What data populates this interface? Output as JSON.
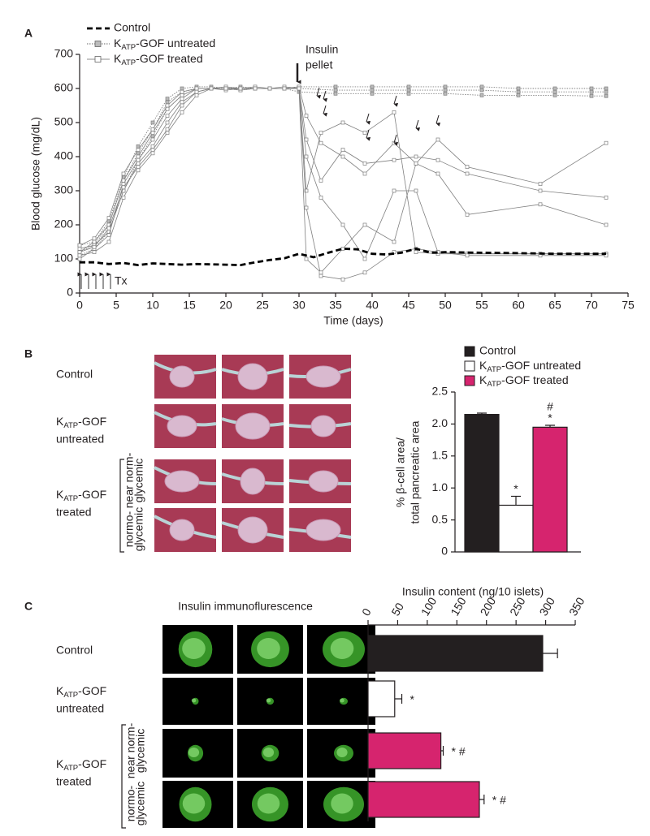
{
  "panel_labels": [
    "A",
    "B",
    "C"
  ],
  "figure_b": {
    "row_labels": [
      [
        "Control"
      ],
      [
        [
          "K",
          {
            "sub": "ATP"
          },
          "-GOF"
        ],
        "untreated"
      ],
      [
        [
          "K",
          {
            "sub": "ATP"
          },
          "-GOF"
        ],
        "treated"
      ]
    ],
    "subgroup_labels": [
      [
        "near norm-",
        "glycemic"
      ],
      [
        "normo-",
        "glycemic"
      ]
    ]
  },
  "figure_c": {
    "title": "Insulin immunoflurescence",
    "row_labels": [
      [
        "Control"
      ],
      [
        [
          "K",
          {
            "sub": "ATP"
          },
          "-GOF"
        ],
        "untreated"
      ],
      [
        [
          "K",
          {
            "sub": "ATP"
          },
          "-GOF"
        ],
        "treated"
      ]
    ],
    "subgroup_labels": [
      [
        "near norm-",
        "glycemic"
      ],
      [
        "normo-",
        "glycemic"
      ]
    ]
  },
  "chart_data": [
    {
      "type": "line",
      "xlabel": "Time (days)",
      "ylabel": "Blood glucose (mg/dL)",
      "xlim": [
        0,
        75
      ],
      "ylim": [
        0,
        700
      ],
      "xticks": [
        0,
        5,
        10,
        15,
        20,
        25,
        30,
        35,
        40,
        45,
        50,
        55,
        60,
        65,
        70,
        75
      ],
      "yticks": [
        0,
        100,
        200,
        300,
        400,
        500,
        600,
        700
      ],
      "annotations": {
        "pellet": [
          "Insulin",
          "pellet"
        ],
        "treatment": "Tx"
      },
      "series": [
        {
          "name": "Control",
          "color": "#000000",
          "style": "dashed",
          "x": [
            0,
            2,
            4,
            6,
            8,
            10,
            12,
            14,
            16,
            18,
            20,
            22,
            24,
            26,
            28,
            30,
            32,
            34,
            36,
            38,
            40,
            42,
            44,
            46,
            48,
            50,
            55,
            60,
            65,
            70,
            72
          ],
          "values": [
            90,
            90,
            85,
            88,
            82,
            87,
            85,
            83,
            85,
            84,
            83,
            82,
            90,
            97,
            102,
            115,
            105,
            118,
            130,
            128,
            115,
            113,
            118,
            130,
            118,
            120,
            118,
            117,
            115,
            115,
            115
          ]
        },
        {
          "name": [
            "K",
            {
              "sub": "ATP"
            },
            "-GOF untreated"
          ],
          "color": "#808080",
          "style": "dotted",
          "marker": "filled",
          "x": [
            0,
            2,
            4,
            6,
            8,
            10,
            12,
            14,
            16,
            18,
            20,
            22,
            24,
            26,
            28,
            30,
            35,
            40,
            45,
            50,
            55,
            60,
            65,
            70,
            72
          ],
          "traces": [
            [
              140,
              150,
              210,
              340,
              430,
              500,
              570,
              600,
              605,
              605,
              600,
              605,
              600,
              600,
              600,
              605,
              605,
              605,
              605,
              605,
              605,
              600,
              600,
              600,
              600
            ],
            [
              120,
              140,
              200,
              330,
              410,
              480,
              560,
              590,
              600,
              600,
              600,
              600,
              600,
              600,
              600,
              600,
              595,
              595,
              595,
              595,
              595,
              590,
              590,
              590,
              590
            ],
            [
              110,
              130,
              180,
              300,
              390,
              460,
              540,
              580,
              600,
              600,
              600,
              595,
              600,
              600,
              600,
              590,
              585,
              585,
              585,
              585,
              580,
              580,
              580,
              578,
              578
            ]
          ]
        },
        {
          "name": [
            "K",
            {
              "sub": "ATP"
            },
            "-GOF treated"
          ],
          "color": "#808080",
          "style": "solid",
          "marker": "open",
          "x": [
            0,
            2,
            4,
            6,
            8,
            10,
            12,
            14,
            16,
            18,
            20,
            22,
            24,
            26,
            28,
            30,
            31,
            33,
            36,
            39,
            43,
            46,
            49,
            53,
            63,
            72
          ],
          "traces": [
            [
              120,
              150,
              200,
              330,
              400,
              470,
              540,
              580,
              600,
              600,
              605,
              600,
              600,
              600,
              605,
              600,
              300,
              470,
              500,
              470,
              530,
              120,
              115,
              115,
              115,
              115
            ],
            [
              130,
              140,
              180,
              300,
              380,
              430,
              500,
              560,
              590,
              600,
              595,
              600,
              605,
              600,
              600,
              600,
              250,
              50,
              40,
              60,
              120,
              130,
              120,
              115,
              115,
              115
            ],
            [
              110,
              120,
              150,
              280,
              360,
              410,
              470,
              530,
              580,
              600,
              600,
              595,
              600,
              600,
              600,
              605,
              520,
              440,
              400,
              350,
              440,
              380,
              450,
              370,
              320,
              440
            ],
            [
              100,
              130,
              170,
              320,
              390,
              450,
              520,
              570,
              600,
              600,
              600,
              600,
              600,
              600,
              600,
              600,
              450,
              330,
              420,
              380,
              390,
              400,
              390,
              350,
              300,
              280
            ],
            [
              140,
              160,
              220,
              350,
              420,
              480,
              550,
              590,
              600,
              600,
              600,
              600,
              600,
              600,
              600,
              600,
              100,
              60,
              130,
              200,
              150,
              380,
              350,
              230,
              260,
              200
            ],
            [
              120,
              135,
              190,
              310,
              370,
              420,
              480,
              550,
              590,
              600,
              600,
              600,
              600,
              600,
              600,
              600,
              400,
              280,
              200,
              100,
              300,
              300,
              120,
              110,
              110,
              110
            ]
          ]
        }
      ]
    },
    {
      "type": "bar",
      "ylabel": [
        "% β-cell area/",
        "total pancreatic area"
      ],
      "categories": [
        "Control",
        [
          "K",
          {
            "sub": "ATP"
          },
          "-GOF untreated"
        ],
        [
          "K",
          {
            "sub": "ATP"
          },
          "-GOF treated"
        ]
      ],
      "colors": [
        "#231f20",
        "#ffffff",
        "#d6246e"
      ],
      "values": [
        2.15,
        0.73,
        1.95
      ],
      "errors": [
        0.02,
        0.14,
        0.03
      ],
      "significance": [
        null,
        [
          "*"
        ],
        [
          "#",
          "*"
        ]
      ],
      "ylim": [
        0,
        2.5
      ],
      "yticks": [
        0,
        0.5,
        {
          "value": 1,
          "label": "1.0"
        },
        1.5,
        {
          "value": 2,
          "label": "2.0"
        },
        2.5
      ]
    },
    {
      "type": "barh",
      "title": "Insulin content (ng/10 islets)",
      "colors": [
        "#231f20",
        "#ffffff",
        "#d6246e",
        "#d6246e"
      ],
      "values": [
        295,
        45,
        123,
        188
      ],
      "errors": [
        25,
        12,
        4,
        8
      ],
      "significance": [
        null,
        "*",
        "* #",
        "* #"
      ],
      "xlim": [
        0,
        350
      ],
      "xticks": [
        0,
        50,
        100,
        150,
        200,
        250,
        300,
        350
      ]
    }
  ]
}
